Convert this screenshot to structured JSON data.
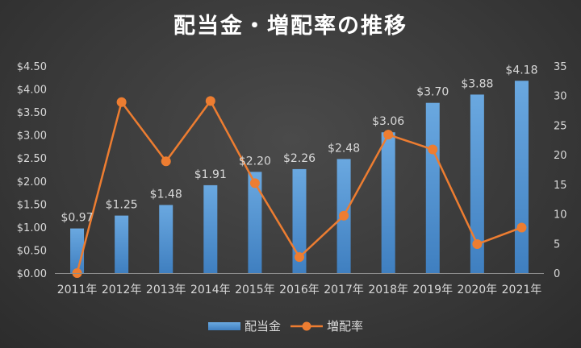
{
  "chart_data": {
    "type": "bar",
    "title": "配当金・増配率の推移",
    "categories": [
      "2011年",
      "2012年",
      "2013年",
      "2014年",
      "2015年",
      "2016年",
      "2017年",
      "2018年",
      "2019年",
      "2020年",
      "2021年"
    ],
    "series": [
      {
        "name": "配当金",
        "type": "bar",
        "axis": "left",
        "values": [
          0.97,
          1.25,
          1.48,
          1.91,
          2.2,
          2.26,
          2.48,
          3.06,
          3.7,
          3.88,
          4.18
        ],
        "labels": [
          "$0.97",
          "$1.25",
          "$1.48",
          "$1.91",
          "$2.20",
          "$2.26",
          "$2.48",
          "$3.06",
          "$3.70",
          "$3.88",
          "$4.18"
        ]
      },
      {
        "name": "増配率",
        "type": "line",
        "axis": "right",
        "values": [
          0,
          28.9,
          18.9,
          29.1,
          15.2,
          2.7,
          9.7,
          23.4,
          20.9,
          4.9,
          7.7
        ]
      }
    ],
    "left_axis": {
      "ylim": [
        0,
        4.5
      ],
      "ticks": [
        "$0.00",
        "$0.50",
        "$1.00",
        "$1.50",
        "$2.00",
        "$2.50",
        "$3.00",
        "$3.50",
        "$4.00",
        "$4.50"
      ]
    },
    "right_axis": {
      "ylim": [
        0,
        35
      ],
      "ticks": [
        "0",
        "5",
        "10",
        "15",
        "20",
        "25",
        "30",
        "35"
      ]
    },
    "grid": false,
    "legend": "bottom",
    "colors": {
      "bar": "#5b9bd5",
      "line": "#ed7d31",
      "text": "#d9d9d9",
      "title": "#ffffff"
    }
  }
}
